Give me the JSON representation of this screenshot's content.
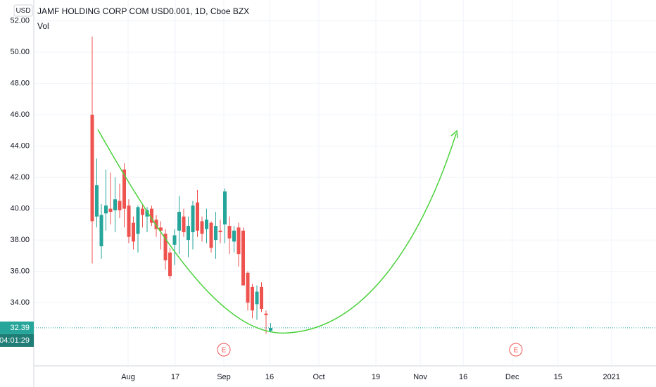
{
  "chart_data": {
    "type": "candlestick",
    "title": "JAMF HOLDING CORP COM USD0.001, 1D, Cboe BZX",
    "currency": "USD",
    "volume_label": "Vol",
    "open": [
      46.0,
      39.5,
      37.6,
      39.7,
      40.0,
      39.9,
      40.5,
      42.5,
      40.2,
      39.1,
      38.4,
      40.0,
      39.5,
      40.0,
      39.3,
      38.8,
      38.4,
      37.2,
      37.7,
      38.6,
      39.5,
      38.0,
      38.5,
      40.4,
      39.2,
      38.7,
      39.1,
      38.0,
      38.6,
      39.0,
      38.9,
      37.9,
      38.8,
      38.6,
      35.9,
      35.0,
      33.9,
      35.0,
      33.3,
      32.2
    ],
    "high": [
      51.0,
      43.2,
      40.3,
      42.5,
      42.3,
      42.0,
      41.6,
      42.9,
      40.6,
      39.5,
      40.2,
      40.3,
      40.1,
      40.2,
      39.6,
      39.2,
      38.7,
      37.5,
      38.7,
      40.8,
      40.0,
      39.5,
      40.5,
      41.2,
      39.5,
      40.0,
      39.2,
      39.8,
      39.3,
      41.3,
      39.5,
      38.9,
      39.1,
      38.8,
      36.0,
      35.2,
      35.1,
      35.3,
      33.5,
      32.7
    ],
    "low": [
      36.5,
      38.8,
      36.8,
      38.6,
      39.0,
      38.5,
      39.4,
      38.8,
      37.8,
      37.4,
      37.2,
      38.8,
      38.5,
      38.9,
      38.2,
      37.4,
      36.1,
      35.5,
      36.4,
      37.1,
      38.2,
      36.9,
      37.4,
      38.2,
      37.9,
      37.8,
      37.2,
      36.8,
      37.8,
      37.8,
      37.1,
      37.2,
      36.3,
      35.1,
      33.5,
      33.0,
      32.9,
      33.4,
      32.0,
      32.1
    ],
    "close": [
      39.2,
      41.5,
      39.6,
      40.2,
      39.8,
      40.6,
      39.9,
      40.0,
      38.2,
      37.9,
      40.1,
      39.6,
      39.9,
      39.1,
      38.7,
      38.6,
      36.7,
      35.7,
      38.3,
      39.8,
      38.5,
      38.9,
      40.2,
      38.6,
      38.4,
      39.3,
      37.5,
      38.9,
      38.5,
      41.1,
      38.1,
      38.6,
      37.1,
      35.1,
      34.0,
      33.5,
      34.7,
      33.6,
      33.2,
      32.39
    ],
    "up_color": "#26a69a",
    "down_color": "#ef5350",
    "last_price": 32.39,
    "countdown": "04:01:29",
    "ylim": [
      29.96,
      53.33
    ],
    "yticks": [
      {
        "value": 34,
        "label": "34.00"
      },
      {
        "value": 36,
        "label": "36.00"
      },
      {
        "value": 38,
        "label": "38.00"
      },
      {
        "value": 40,
        "label": "40.00"
      },
      {
        "value": 42,
        "label": "42.00"
      },
      {
        "value": 44,
        "label": "44.00"
      },
      {
        "value": 46,
        "label": "46.00"
      },
      {
        "value": 48,
        "label": "48.00"
      },
      {
        "value": 50,
        "label": "50.00"
      },
      {
        "value": 52,
        "label": "52.00"
      }
    ],
    "xlim": [
      -12.77,
      123.23
    ],
    "xticks": [
      {
        "value": 7.85,
        "label": "Aug"
      },
      {
        "value": 18.15,
        "label": "17"
      },
      {
        "value": 28.77,
        "label": "Sep"
      },
      {
        "value": 38.77,
        "label": "16"
      },
      {
        "value": 49.54,
        "label": "Oct"
      },
      {
        "value": 62,
        "label": "19"
      },
      {
        "value": 71.7,
        "label": "Nov"
      },
      {
        "value": 81.1,
        "label": "16"
      },
      {
        "value": 91.8,
        "label": "Dec"
      },
      {
        "value": 101.8,
        "label": "15"
      },
      {
        "value": 113.5,
        "label": "2021"
      }
    ],
    "events": [
      {
        "label": "E",
        "x": 28.77
      },
      {
        "label": "E",
        "x": 92.6
      }
    ],
    "grid": true
  }
}
